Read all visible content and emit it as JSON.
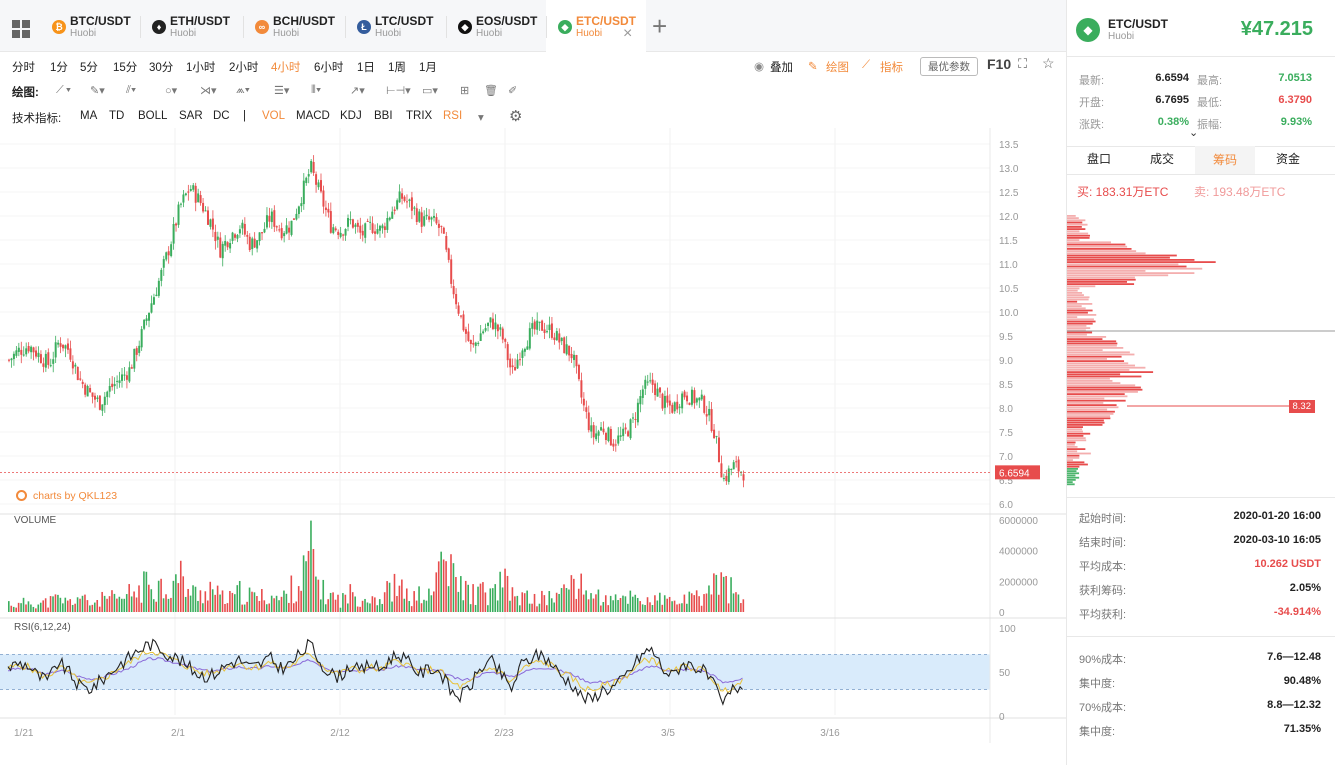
{
  "tabs": [
    {
      "name": "BTC/USDT",
      "exchange": "Huobi",
      "icon": "btc-icon",
      "color": "#f7931a",
      "glyph": "₿"
    },
    {
      "name": "ETH/USDT",
      "exchange": "Huobi",
      "icon": "eth-icon",
      "color": "#222222",
      "glyph": "♦"
    },
    {
      "name": "BCH/USDT",
      "exchange": "Huobi",
      "icon": "bch-icon",
      "color": "#f28a3b",
      "glyph": "∞"
    },
    {
      "name": "LTC/USDT",
      "exchange": "Huobi",
      "icon": "ltc-icon",
      "color": "#345d9d",
      "glyph": "Ł"
    },
    {
      "name": "EOS/USDT",
      "exchange": "Huobi",
      "icon": "eos-icon",
      "color": "#111111",
      "glyph": "◆"
    },
    {
      "name": "ETC/USDT",
      "exchange": "Huobi",
      "icon": "etc-icon",
      "color": "#3aad5d",
      "glyph": "◆"
    }
  ],
  "add_tab": "+",
  "close_tab": "×",
  "timeframes": [
    "分时",
    "1分",
    "5分",
    "15分",
    "30分",
    "1小时",
    "2小时",
    "4小时",
    "6小时",
    "1日",
    "1周",
    "1月"
  ],
  "active_timeframe": "4小时",
  "toolbar_right": {
    "overlay": "叠加",
    "draw": "绘图",
    "indicator": "指标",
    "best_params": "最优参数",
    "f10": "F10"
  },
  "draw_label": "绘图:",
  "indicator_label": "技术指标:",
  "indicators": [
    "MA",
    "TD",
    "BOLL",
    "SAR",
    "DC",
    "|",
    "VOL",
    "MACD",
    "KDJ",
    "BBI",
    "TRIX",
    "RSI"
  ],
  "active_indicators": [
    "VOL",
    "RSI"
  ],
  "watermark": "charts by QKL123",
  "volume_label": "VOLUME",
  "rsi_label": "RSI(6,12,24)",
  "last_price_tag": "6.6594",
  "sidebar": {
    "pair": "ETC/USDT",
    "exchange": "Huobi",
    "price": "¥47.215",
    "stats": [
      {
        "l1": "最新:",
        "v1": "6.6594",
        "l2": "最高:",
        "v2": "7.0513",
        "c2": "green"
      },
      {
        "l1": "开盘:",
        "v1": "6.7695",
        "l2": "最低:",
        "v2": "6.3790",
        "c2": "red"
      },
      {
        "l1": "涨跌:",
        "v1": "0.38%",
        "c1": "green",
        "l2": "振幅:",
        "v2": "9.93%",
        "c2": "green"
      }
    ],
    "tabs": [
      "盘口",
      "成交",
      "筹码",
      "资金"
    ],
    "active_tab": "筹码",
    "buy": "买: 183.31万ETC",
    "sell": "卖: 193.48万ETC",
    "dist_tag": "8.32",
    "details": [
      {
        "label": "起始时间:",
        "value": "2020-01-20 16:00",
        "color": "#222"
      },
      {
        "label": "结束时间:",
        "value": "2020-03-10 16:05",
        "color": "#222"
      },
      {
        "label": "平均成本:",
        "value": "10.262 USDT",
        "color": "#e74c4c"
      },
      {
        "label": "获利筹码:",
        "value": "2.05%",
        "color": "#222"
      },
      {
        "label": "平均获利:",
        "value": "-34.914%",
        "color": "#e74c4c"
      }
    ],
    "concentration": [
      {
        "label": "90%成本:",
        "value": "7.6—12.48"
      },
      {
        "label": "集中度:",
        "value": "90.48%"
      },
      {
        "label": "70%成本:",
        "value": "8.8—12.32"
      },
      {
        "label": "集中度:",
        "value": "71.35%"
      }
    ]
  },
  "chart_data": {
    "type": "candlestick",
    "x_ticks": [
      "1/21",
      "2/1",
      "2/12",
      "2/23",
      "3/5",
      "3/16"
    ],
    "price_ticks": [
      "13.5",
      "13.0",
      "12.5",
      "12.0",
      "11.5",
      "11.0",
      "10.5",
      "10.0",
      "9.5",
      "9.0",
      "8.5",
      "8.0",
      "7.5",
      "7.0",
      "6.5",
      "6.0"
    ],
    "price_range": [
      6.0,
      13.5
    ],
    "volume_ticks": [
      "6000000",
      "4000000",
      "2000000",
      "0"
    ],
    "volume_range": [
      0,
      6000000
    ],
    "rsi_ticks": [
      "100",
      "50",
      "0"
    ],
    "rsi_range": [
      0,
      100
    ],
    "rsi_band": [
      30,
      70
    ],
    "close_path": [
      9.0,
      9.2,
      9.3,
      9.1,
      8.9,
      9.4,
      9.2,
      8.6,
      8.3,
      8.1,
      8.4,
      8.6,
      8.8,
      9.4,
      10.1,
      10.7,
      11.4,
      12.2,
      12.6,
      12.3,
      11.9,
      11.3,
      11.6,
      11.8,
      11.4,
      11.6,
      12.0,
      11.7,
      11.8,
      12.4,
      13.0,
      12.4,
      11.8,
      11.7,
      11.9,
      11.6,
      11.8,
      11.7,
      12.1,
      12.4,
      12.2,
      11.9,
      11.9,
      11.7,
      10.6,
      9.8,
      9.2,
      9.6,
      9.8,
      9.5,
      8.7,
      9.3,
      9.6,
      9.7,
      9.6,
      9.3,
      9.1,
      8.1,
      7.4,
      7.6,
      7.3,
      7.4,
      7.7,
      8.4,
      8.5,
      8.1,
      8.0,
      8.3,
      8.2,
      8.1,
      7.6,
      6.5,
      6.8,
      6.66
    ],
    "volume_path": [
      0.7,
      0.5,
      0.9,
      0.6,
      0.8,
      1.0,
      0.7,
      1.2,
      0.6,
      0.9,
      1.1,
      0.8,
      1.4,
      1.6,
      2.4,
      2.0,
      1.8,
      2.7,
      1.5,
      1.3,
      1.9,
      1.1,
      1.0,
      1.5,
      1.2,
      1.1,
      1.3,
      0.9,
      1.7,
      2.2,
      4.5,
      1.6,
      1.2,
      0.9,
      1.4,
      1.0,
      1.3,
      0.9,
      2.0,
      1.6,
      1.0,
      1.3,
      1.1,
      4.3,
      2.7,
      1.9,
      1.4,
      1.5,
      1.2,
      2.4,
      1.3,
      1.1,
      1.0,
      1.0,
      1.2,
      1.3,
      2.6,
      1.7,
      1.4,
      1.0,
      0.8,
      1.0,
      1.3,
      0.9,
      0.8,
      1.0,
      0.7,
      0.9,
      1.0,
      1.1,
      2.2,
      2.1,
      1.6,
      0.6
    ],
    "rsi6_path": [
      55,
      60,
      58,
      45,
      40,
      62,
      50,
      35,
      30,
      38,
      48,
      58,
      66,
      75,
      82,
      78,
      70,
      64,
      55,
      48,
      45,
      52,
      60,
      64,
      55,
      58,
      66,
      55,
      58,
      70,
      82,
      62,
      48,
      45,
      58,
      50,
      60,
      52,
      66,
      70,
      58,
      48,
      55,
      50,
      28,
      22,
      35,
      55,
      62,
      48,
      30,
      58,
      66,
      70,
      60,
      45,
      38,
      22,
      18,
      30,
      32,
      40,
      55,
      70,
      76,
      55,
      45,
      60,
      58,
      52,
      38,
      12,
      30,
      35
    ],
    "rsi12_path": [
      54,
      57,
      56,
      48,
      44,
      56,
      50,
      40,
      36,
      40,
      46,
      54,
      60,
      68,
      74,
      72,
      66,
      61,
      55,
      50,
      48,
      52,
      57,
      60,
      55,
      56,
      61,
      55,
      56,
      64,
      72,
      60,
      51,
      48,
      55,
      51,
      56,
      52,
      60,
      63,
      56,
      50,
      53,
      51,
      38,
      33,
      38,
      50,
      55,
      49,
      38,
      52,
      59,
      62,
      58,
      49,
      44,
      33,
      29,
      34,
      36,
      42,
      51,
      61,
      66,
      55,
      49,
      56,
      55,
      52,
      43,
      26,
      34,
      38
    ],
    "rsi24_path": [
      52,
      54,
      54,
      50,
      47,
      52,
      50,
      45,
      42,
      43,
      46,
      50,
      54,
      60,
      65,
      65,
      62,
      60,
      56,
      53,
      51,
      52,
      54,
      56,
      54,
      54,
      57,
      55,
      55,
      59,
      64,
      58,
      53,
      51,
      53,
      52,
      54,
      52,
      55,
      57,
      55,
      52,
      52,
      51,
      45,
      41,
      42,
      47,
      50,
      48,
      44,
      49,
      53,
      55,
      54,
      51,
      48,
      42,
      38,
      39,
      40,
      43,
      47,
      53,
      57,
      54,
      51,
      53,
      53,
      52,
      47,
      38,
      40,
      42
    ]
  }
}
